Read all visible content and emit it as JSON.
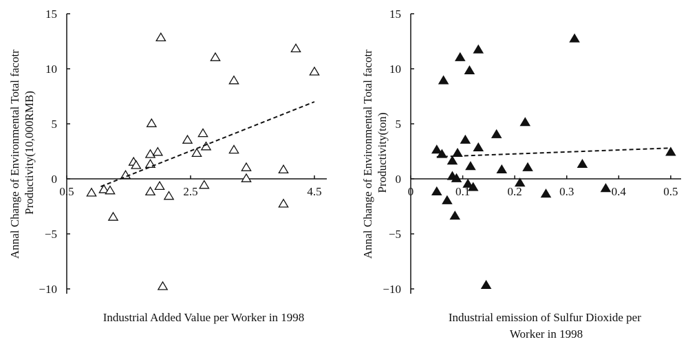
{
  "chart_data": [
    {
      "type": "scatter",
      "title": "",
      "xlabel": "Industrial Added Value per Worker in 1998",
      "ylabel": [
        "Annal Change of Environmental Total facotr",
        "Productivity(10,000RMB)"
      ],
      "xlim": [
        0.5,
        4.7
      ],
      "ylim": [
        -10.3,
        15
      ],
      "x_ticks": [
        0.5,
        2.5,
        4.5
      ],
      "x_tick_labels": [
        "0.5",
        "2.5",
        "4.5"
      ],
      "y_ticks": [
        -10,
        -5,
        0,
        5,
        10,
        15
      ],
      "y_tick_labels": [
        "−10",
        "−5",
        "0",
        "5",
        "10",
        "15"
      ],
      "marker": "hollow-triangle",
      "series": [
        {
          "points": [
            [
              0.9,
              -1.3
            ],
            [
              1.1,
              -1.0
            ],
            [
              1.2,
              -1.1
            ],
            [
              1.25,
              -3.5
            ],
            [
              1.45,
              0.3
            ],
            [
              1.58,
              1.5
            ],
            [
              1.62,
              1.2
            ],
            [
              1.85,
              -1.2
            ],
            [
              1.85,
              2.2
            ],
            [
              1.85,
              1.3
            ],
            [
              1.87,
              5.0
            ],
            [
              1.97,
              2.4
            ],
            [
              2.0,
              -0.7
            ],
            [
              2.02,
              12.8
            ],
            [
              2.05,
              -9.8
            ],
            [
              2.15,
              -1.6
            ],
            [
              2.45,
              3.5
            ],
            [
              2.6,
              2.3
            ],
            [
              2.7,
              4.1
            ],
            [
              2.72,
              -0.6
            ],
            [
              2.75,
              2.9
            ],
            [
              2.9,
              11.0
            ],
            [
              3.2,
              8.9
            ],
            [
              3.2,
              2.6
            ],
            [
              3.4,
              1.0
            ],
            [
              3.4,
              0.0
            ],
            [
              4.0,
              0.8
            ],
            [
              4.0,
              -2.3
            ],
            [
              4.2,
              11.8
            ],
            [
              4.5,
              9.7
            ]
          ]
        }
      ],
      "trend_line": [
        [
          1.05,
          -0.7
        ],
        [
          4.5,
          7.0
        ]
      ]
    },
    {
      "type": "scatter",
      "title": "",
      "xlabel": [
        "Industrial emission of Sulfur Dioxide per",
        "Worker in 1998"
      ],
      "ylabel": [
        "Annal Change of Environmental Total facotr",
        "Productivity(ton)"
      ],
      "xlim": [
        0,
        0.52
      ],
      "ylim": [
        -10.3,
        15
      ],
      "x_ticks": [
        0,
        0.1,
        0.2,
        0.3,
        0.4,
        0.5
      ],
      "x_tick_labels": [
        "0",
        "0.1",
        "0.2",
        "0.3",
        "0.4",
        "0.5"
      ],
      "y_ticks": [
        -10,
        -5,
        0,
        5,
        10,
        15
      ],
      "y_tick_labels": [
        "−10",
        "−5",
        "0",
        "5",
        "10",
        "15"
      ],
      "marker": "filled-triangle",
      "series": [
        {
          "points": [
            [
              0.05,
              2.6
            ],
            [
              0.05,
              -1.2
            ],
            [
              0.06,
              2.2
            ],
            [
              0.063,
              8.9
            ],
            [
              0.07,
              -2.0
            ],
            [
              0.08,
              0.2
            ],
            [
              0.08,
              1.6
            ],
            [
              0.085,
              -3.4
            ],
            [
              0.088,
              0.0
            ],
            [
              0.09,
              2.3
            ],
            [
              0.095,
              11.0
            ],
            [
              0.105,
              3.5
            ],
            [
              0.11,
              -0.5
            ],
            [
              0.113,
              9.8
            ],
            [
              0.115,
              1.1
            ],
            [
              0.12,
              -0.8
            ],
            [
              0.13,
              11.7
            ],
            [
              0.13,
              2.8
            ],
            [
              0.145,
              -9.7
            ],
            [
              0.165,
              4.0
            ],
            [
              0.175,
              0.8
            ],
            [
              0.21,
              -0.4
            ],
            [
              0.22,
              5.1
            ],
            [
              0.225,
              1.0
            ],
            [
              0.26,
              -1.4
            ],
            [
              0.315,
              12.7
            ],
            [
              0.33,
              1.3
            ],
            [
              0.375,
              -0.9
            ],
            [
              0.5,
              2.4
            ]
          ]
        }
      ],
      "trend_line": [
        [
          0.05,
          2.0
        ],
        [
          0.5,
          2.8
        ]
      ]
    }
  ]
}
